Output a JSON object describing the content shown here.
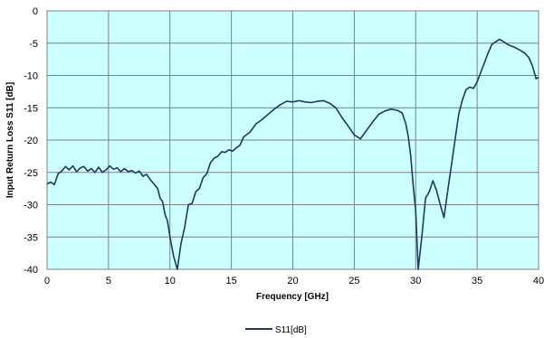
{
  "chart_data": {
    "type": "line",
    "xlabel": "Frequency [GHz]",
    "ylabel": "Input Return Loss S11 [dB]",
    "xlim": [
      0,
      40
    ],
    "ylim": [
      -40,
      0
    ],
    "x_ticks": [
      0,
      5,
      10,
      15,
      20,
      25,
      30,
      35,
      40
    ],
    "y_ticks": [
      0,
      -5,
      -10,
      -15,
      -20,
      -25,
      -30,
      -35,
      -40
    ],
    "x_tick_labels": [
      "0",
      "5",
      "10",
      "15",
      "20",
      "25",
      "30",
      "35",
      "40"
    ],
    "y_tick_labels": [
      "0",
      "-5",
      "-10",
      "-15",
      "-20",
      "-25",
      "-30",
      "-35",
      "-40"
    ],
    "grid": true,
    "plot_background": "#ccffff",
    "legend_position": "bottom-center",
    "series": [
      {
        "name": "S11[dB]",
        "color": "#1f3864",
        "x": [
          0,
          0.3,
          0.6,
          0.9,
          1.2,
          1.5,
          1.8,
          2.1,
          2.4,
          2.7,
          3.0,
          3.3,
          3.6,
          3.9,
          4.2,
          4.5,
          4.8,
          5.1,
          5.4,
          5.7,
          6.0,
          6.3,
          6.6,
          6.9,
          7.2,
          7.5,
          7.8,
          8.1,
          8.4,
          8.7,
          9.0,
          9.2,
          9.4,
          9.6,
          9.8,
          10.0,
          10.3,
          10.6,
          10.9,
          11.2,
          11.5,
          11.8,
          12.1,
          12.4,
          12.7,
          13.0,
          13.3,
          13.6,
          13.9,
          14.2,
          14.5,
          14.8,
          15.1,
          15.4,
          15.7,
          16.0,
          16.5,
          17.0,
          17.5,
          18.0,
          18.5,
          19.0,
          19.5,
          20.0,
          20.5,
          21.0,
          21.5,
          22.0,
          22.5,
          23.0,
          23.5,
          24.0,
          24.5,
          25.0,
          25.5,
          26.0,
          26.5,
          27.0,
          27.5,
          28.0,
          28.5,
          28.9,
          29.2,
          29.4,
          29.6,
          29.8,
          30.0,
          30.2,
          30.5,
          30.8,
          31.1,
          31.4,
          31.7,
          32.0,
          32.3,
          32.6,
          32.9,
          33.2,
          33.5,
          33.8,
          34.1,
          34.4,
          34.7,
          35.0,
          35.3,
          35.6,
          35.9,
          36.2,
          36.5,
          36.8,
          37.1,
          37.4,
          37.7,
          38.0,
          38.3,
          38.6,
          38.9,
          39.2,
          39.5,
          39.8,
          40.0
        ],
        "y": [
          -26.8,
          -26.5,
          -26.9,
          -25.2,
          -24.8,
          -24.1,
          -24.6,
          -24.0,
          -24.9,
          -24.3,
          -24.1,
          -24.8,
          -24.4,
          -25.0,
          -24.2,
          -25.0,
          -24.6,
          -24.0,
          -24.5,
          -24.3,
          -24.9,
          -24.4,
          -24.9,
          -24.7,
          -25.1,
          -24.8,
          -25.6,
          -25.3,
          -26.1,
          -26.8,
          -27.5,
          -29.0,
          -29.5,
          -31.5,
          -32.5,
          -35.0,
          -38.0,
          -41.0,
          -36.0,
          -33.5,
          -30.0,
          -29.8,
          -28.0,
          -27.5,
          -25.8,
          -25.2,
          -23.5,
          -22.8,
          -22.5,
          -21.8,
          -21.9,
          -21.5,
          -21.7,
          -21.2,
          -20.8,
          -19.5,
          -18.8,
          -17.5,
          -16.8,
          -16.0,
          -15.2,
          -14.5,
          -14.0,
          -14.1,
          -13.9,
          -14.1,
          -14.2,
          -14.0,
          -13.9,
          -14.3,
          -15.0,
          -16.5,
          -17.8,
          -19.2,
          -19.8,
          -18.5,
          -17.2,
          -16.0,
          -15.5,
          -15.2,
          -15.4,
          -15.8,
          -17.5,
          -19.5,
          -22.5,
          -27.0,
          -31.0,
          -41.0,
          -35.0,
          -29.0,
          -28.0,
          -26.3,
          -27.8,
          -30.0,
          -32.0,
          -28.0,
          -24.0,
          -20.0,
          -16.0,
          -13.8,
          -12.2,
          -11.8,
          -12.0,
          -11.0,
          -9.5,
          -8.0,
          -6.5,
          -5.2,
          -4.8,
          -4.4,
          -4.7,
          -5.1,
          -5.4,
          -5.6,
          -5.9,
          -6.2,
          -6.6,
          -7.2,
          -8.5,
          -10.5,
          -10.3
        ]
      }
    ]
  }
}
